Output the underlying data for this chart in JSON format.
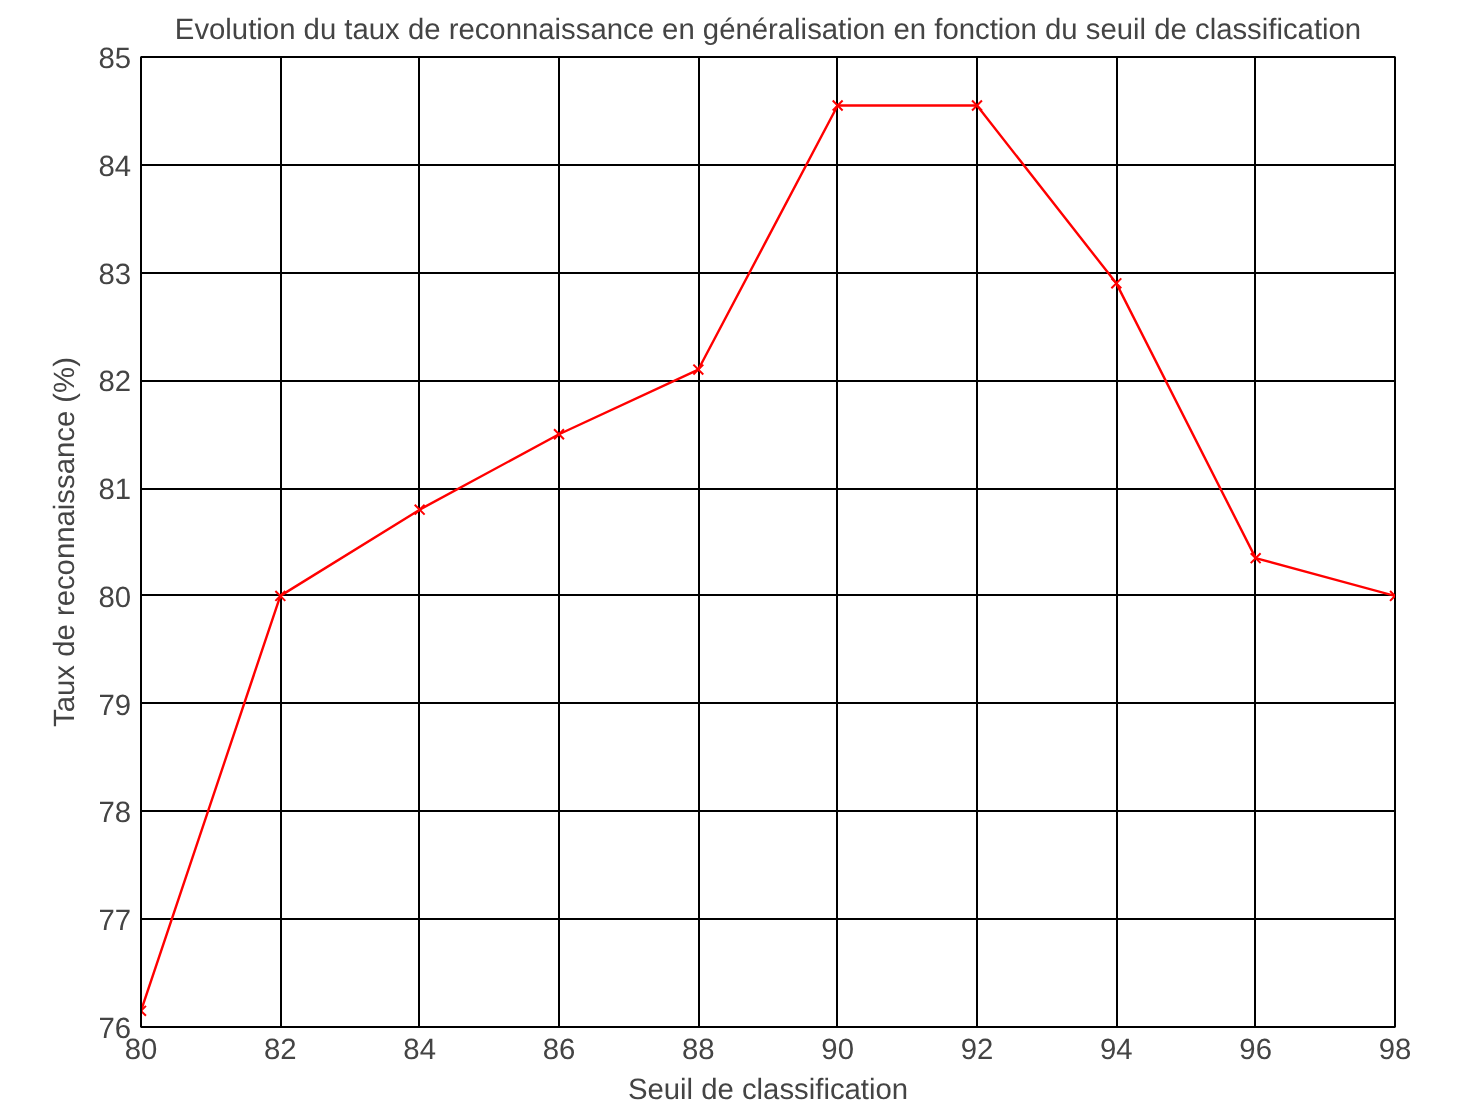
{
  "chart_data": {
    "type": "line",
    "title": "Evolution du taux de reconnaissance en généralisation en fonction du seuil de classification",
    "xlabel": "Seuil de classification",
    "ylabel": "Taux de reconnaissance (%)",
    "x": [
      80,
      82,
      84,
      86,
      88,
      90,
      92,
      94,
      96,
      98
    ],
    "series": [
      {
        "color": "#ff0000",
        "values": [
          76.15,
          80.0,
          80.8,
          81.5,
          82.1,
          84.55,
          84.55,
          82.9,
          80.35,
          80.0
        ]
      }
    ],
    "xlim": [
      80,
      98
    ],
    "ylim": [
      76,
      85
    ],
    "xticks": [
      80,
      82,
      84,
      86,
      88,
      90,
      92,
      94,
      96,
      98
    ],
    "yticks": [
      76,
      77,
      78,
      79,
      80,
      81,
      82,
      83,
      84,
      85
    ],
    "grid": true,
    "marker": "cross",
    "line_style": "solid"
  }
}
